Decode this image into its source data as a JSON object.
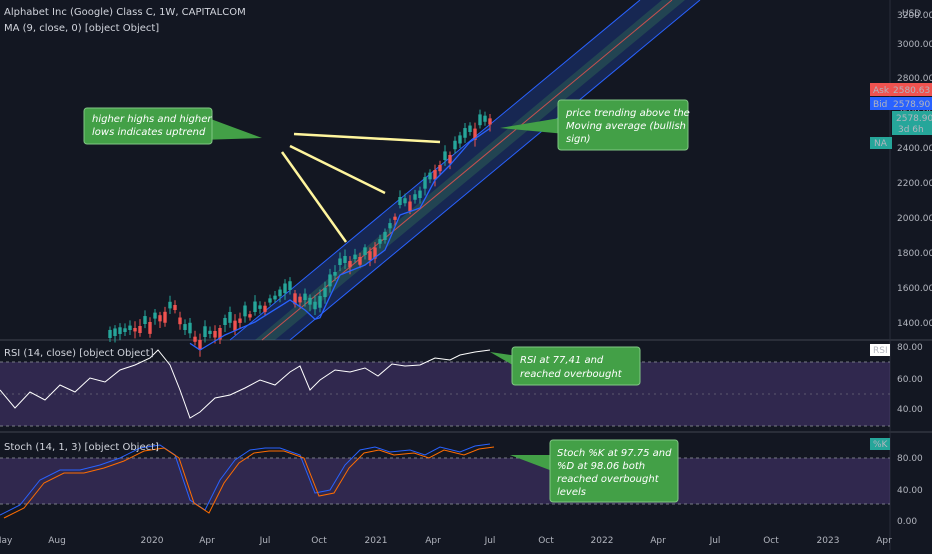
{
  "header": {
    "symbol": "Alphabet Inc (Google) Class C, 1W, CAPITALCOM",
    "ma_label": "MA (9, close, 0) [object Object]",
    "currency": "USD"
  },
  "price_axis": {
    "ticks": [
      "3200.00",
      "3000.00",
      "2800.00",
      "2600.00",
      "2400.00",
      "2200.00",
      "2000.00",
      "1800.00",
      "1600.00",
      "1400.00"
    ],
    "ask_label": "Ask",
    "ask_value": "2580.63",
    "bid_label": "Bid",
    "bid_value": "2578.90",
    "last_value": "2578.90",
    "countdown": "3d 6h",
    "na_label": "NA"
  },
  "rsi_panel": {
    "label": "RSI (14, close) [object Object]",
    "badge": "RSI",
    "ticks": [
      "80.00",
      "60.00",
      "40.00"
    ]
  },
  "stoch_panel": {
    "label": "Stoch (14, 1, 3) [object Object]",
    "badge": "%K",
    "ticks": [
      "80.00",
      "40.00",
      "0.00"
    ]
  },
  "time_axis": {
    "labels": [
      "May",
      "Aug",
      "2020",
      "Apr",
      "Jul",
      "Oct",
      "2021",
      "Apr",
      "Jul",
      "Oct",
      "2022",
      "Apr",
      "Jul",
      "Oct",
      "2023",
      "Apr"
    ]
  },
  "annotations": {
    "uptrend_line1": "higher highs and higher",
    "uptrend_line2": "lows indicates uptrend",
    "ma_line1": "price trending above the",
    "ma_line2": "Moving average (bullish",
    "ma_line3": "sign)",
    "rsi_line1": "RSI at 77,41 and",
    "rsi_line2": "reached overbought",
    "stoch_line1": "Stoch %K at 97.75 and",
    "stoch_line2": "%D at 98.06 both",
    "stoch_line3": "reached overbought",
    "stoch_line4": "levels"
  },
  "colors": {
    "background": "#131722",
    "bull": "#26a69a",
    "bear": "#ef5350",
    "ma": "#2962ff",
    "rsi": "#ffffff",
    "stoch_k": "#2962ff",
    "stoch_d": "#ff6d00",
    "overbought_band": "#7e57c2",
    "note_fill": "#43a047",
    "arrow": "#fff59d"
  },
  "chart_data": {
    "type": "line",
    "price_unit": "USD",
    "rsi": {
      "value": 77.41,
      "ylim": [
        20,
        90
      ]
    },
    "stoch": {
      "k": 97.75,
      "d": 98.06,
      "ylim": [
        -10,
        110
      ]
    }
  }
}
